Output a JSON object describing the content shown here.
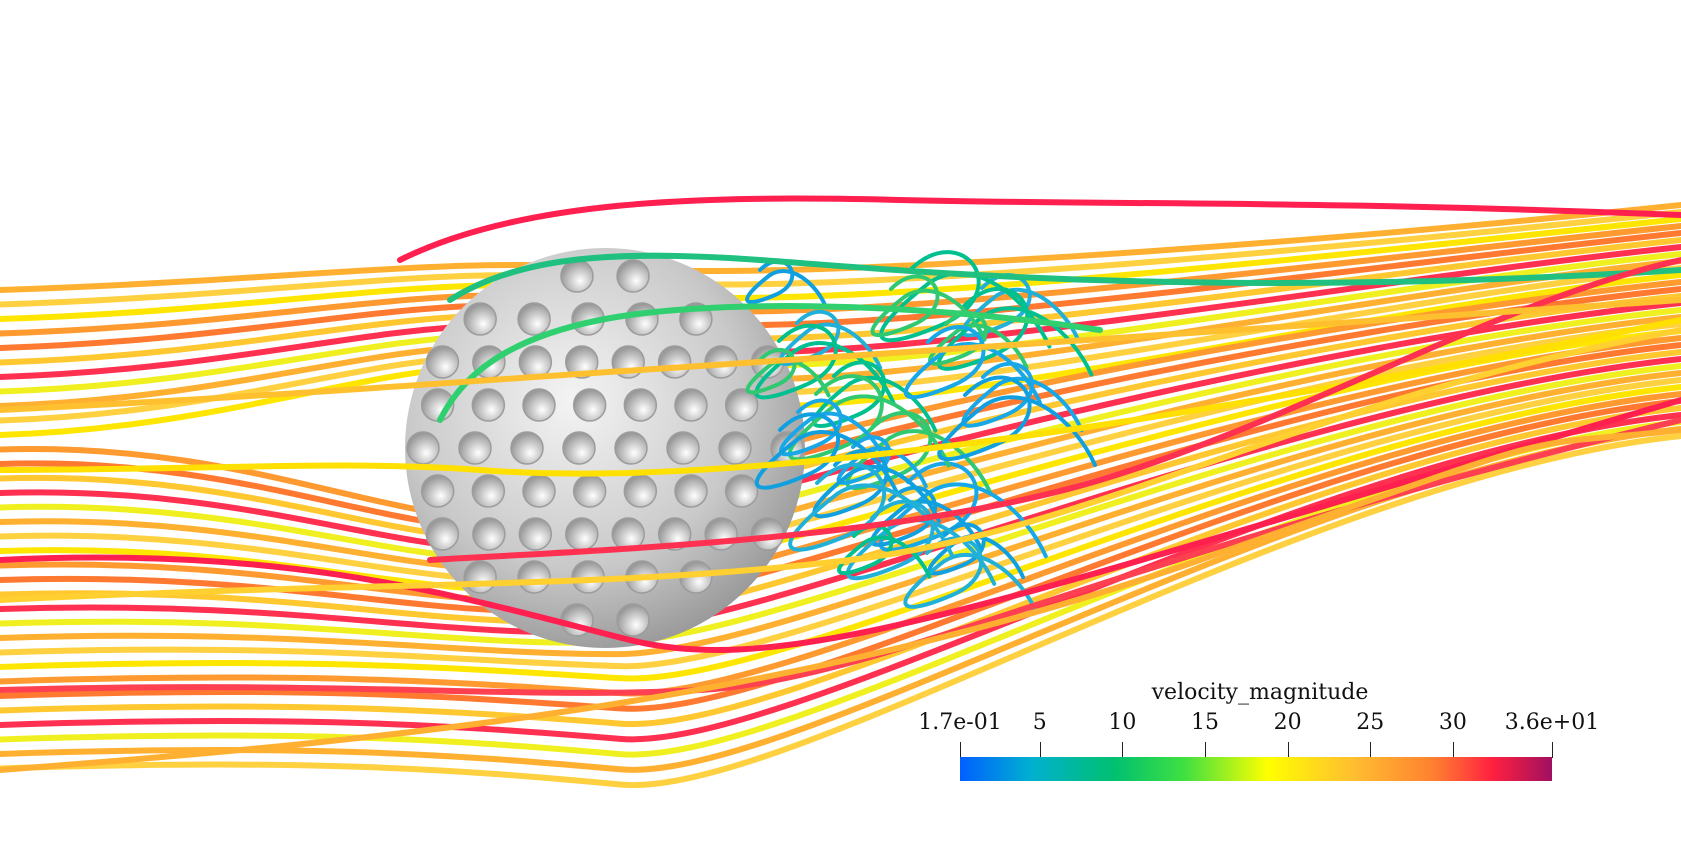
{
  "legend": {
    "title": "velocity_magnitude",
    "ticks": [
      {
        "label": "1.7e-01",
        "value": 0.17
      },
      {
        "label": "5",
        "value": 5
      },
      {
        "label": "10",
        "value": 10
      },
      {
        "label": "15",
        "value": 15
      },
      {
        "label": "20",
        "value": 20
      },
      {
        "label": "25",
        "value": 25
      },
      {
        "label": "30",
        "value": 30
      },
      {
        "label": "3.6e+01",
        "value": 36
      }
    ],
    "range": [
      0.17,
      36
    ],
    "colormap": [
      "#0060ff",
      "#00b0d0",
      "#00c070",
      "#40e040",
      "#ffff00",
      "#ffc030",
      "#ff8030",
      "#ff2040",
      "#a01060"
    ]
  },
  "scene": {
    "sphere_color": "#c8c8c8",
    "background": "#ffffff"
  }
}
